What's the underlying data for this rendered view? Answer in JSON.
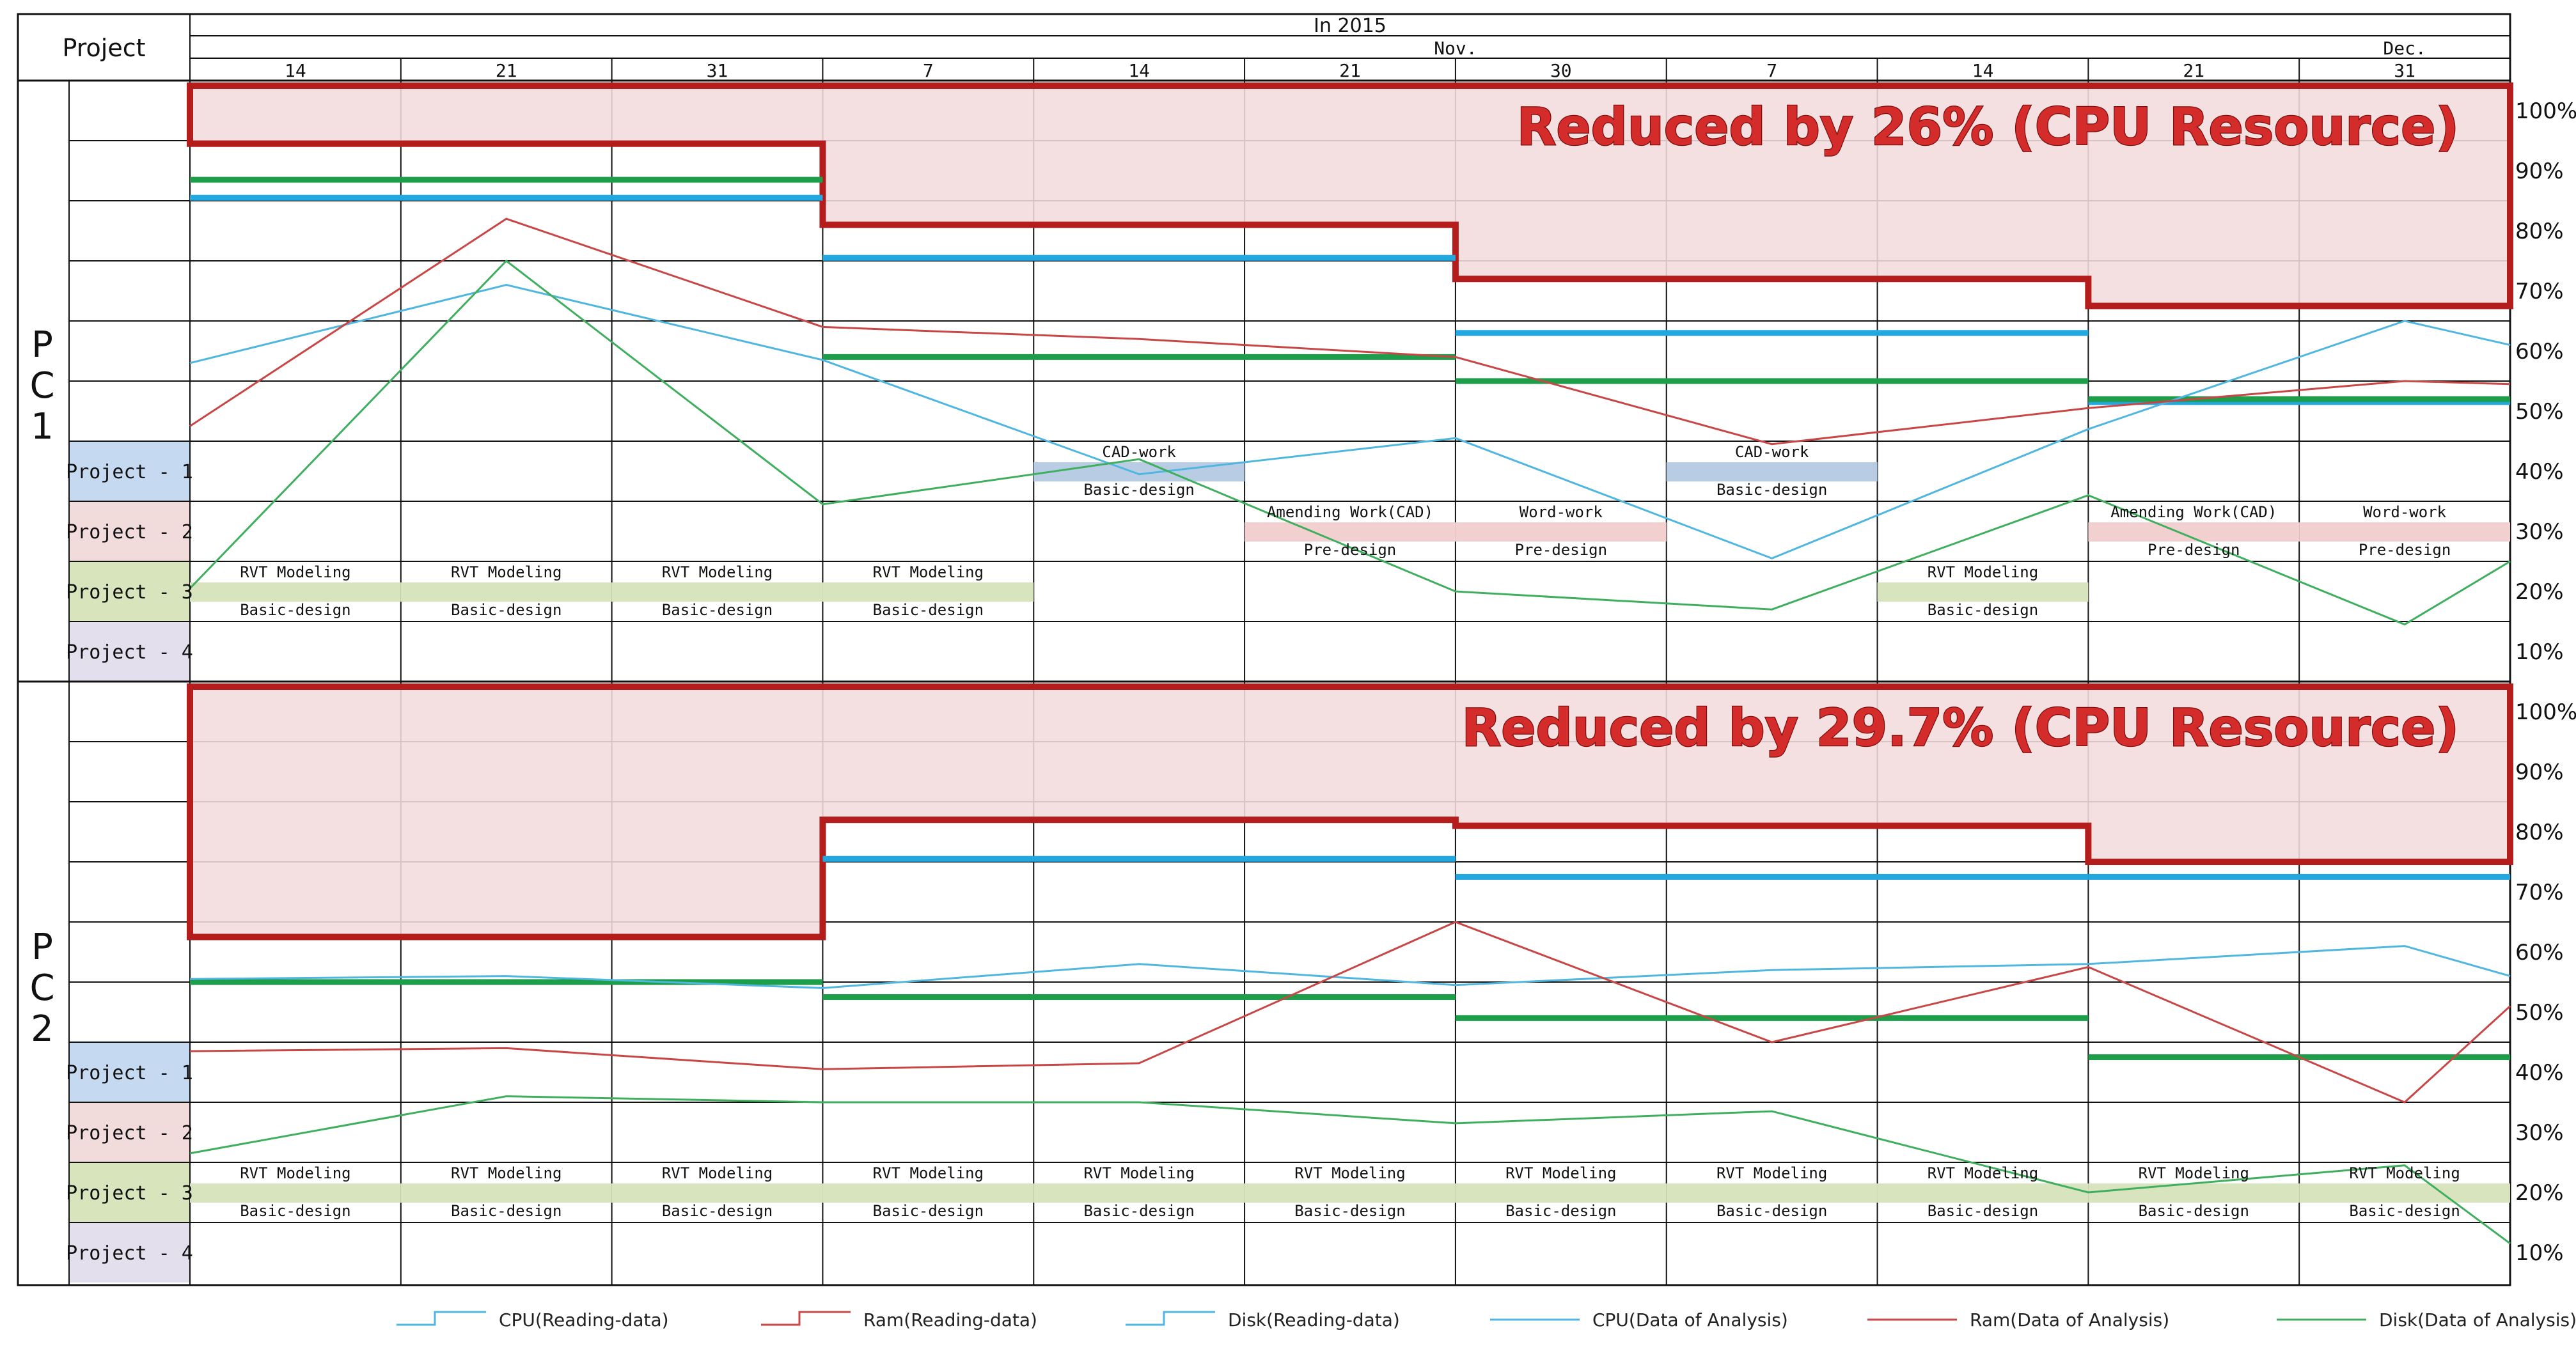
{
  "chart_data": {
    "type": "line",
    "header": {
      "project_label": "Project",
      "year_label": "In 2015",
      "months": [
        {
          "label": "Nov.",
          "from": 3,
          "to": 9
        },
        {
          "label": "Dec.",
          "from": 9,
          "to": 12
        }
      ],
      "dates": [
        "14",
        "21",
        "31",
        "7",
        "14",
        "21",
        "30",
        "7",
        "14",
        "21",
        "31"
      ]
    },
    "y_ticks": [
      "100%",
      "90%",
      "80%",
      "70%",
      "60%",
      "50%",
      "40%",
      "30%",
      "20%",
      "10%"
    ],
    "projects": [
      "Project - 1",
      "Project - 2",
      "Project - 3",
      "Project - 4"
    ],
    "legend": [
      {
        "name": "CPU(Reading-data)",
        "color": "#4fb6e0",
        "style": "step"
      },
      {
        "name": "Ram(Reading-data)",
        "color": "#c84646",
        "style": "step"
      },
      {
        "name": "Disk(Reading-data)",
        "color": "#4fb6e0",
        "style": "step"
      },
      {
        "name": "CPU(Data of Analysis)",
        "color": "#4fb6e0",
        "style": "line"
      },
      {
        "name": "Ram(Data of Analysis)",
        "color": "#c84646",
        "style": "line"
      },
      {
        "name": "Disk(Data of Analysis)",
        "color": "#3fae5e",
        "style": "line"
      }
    ],
    "colors": {
      "cpu": "#4fb6e0",
      "ram": "#c84646",
      "disk": "#3fae5e",
      "cpu_bar": "#22a8e0",
      "disk_bar": "#1e9e4a",
      "banner_fill": "#f2dcdc",
      "banner_border": "#b51c1c",
      "p1": "#c5d9f1",
      "p2": "#f2dcdb",
      "p3": "#d8e4bc",
      "p4": "#e4dfec",
      "bar_p1": "#b8cce4",
      "bar_p2": "#f2d0d0",
      "bar_p3": "#d7e4bd"
    },
    "panels": [
      {
        "name": "PC1",
        "label": [
          "P",
          "C",
          "1"
        ],
        "banner_text": "Reduced by 26% (CPU Resource)",
        "reduction_step": [
          [
            0,
            3,
            94.5
          ],
          [
            3,
            6,
            81
          ],
          [
            6,
            9,
            72
          ],
          [
            9,
            11,
            67.5
          ]
        ],
        "cpu_line": [
          58,
          71,
          58.5,
          39.5,
          45.5,
          25.5,
          47,
          65,
          61
        ],
        "ram_line": [
          47.5,
          82,
          64,
          62,
          59,
          44.5,
          50.5,
          55,
          54.5
        ],
        "disk_line": [
          20.5,
          75,
          34.5,
          42,
          20,
          17,
          36,
          14.5,
          25
        ],
        "cpu_analysis": [
          [
            0,
            3,
            85.5
          ],
          [
            3,
            6,
            75.5
          ],
          [
            6,
            9,
            63
          ],
          [
            9,
            11,
            51.5
          ]
        ],
        "disk_analysis": [
          [
            0,
            3,
            88.5
          ],
          [
            3,
            6,
            59
          ],
          [
            6,
            9,
            55
          ],
          [
            9,
            11,
            52
          ]
        ],
        "tasks": [
          {
            "col": 0,
            "row": 2,
            "top": "RVT Modeling",
            "bottom": "Basic-design"
          },
          {
            "col": 1,
            "row": 2,
            "top": "RVT Modeling",
            "bottom": "Basic-design"
          },
          {
            "col": 2,
            "row": 2,
            "top": "RVT Modeling",
            "bottom": "Basic-design"
          },
          {
            "col": 3,
            "row": 2,
            "top": "RVT Modeling",
            "bottom": "Basic-design"
          },
          {
            "col": 4,
            "row": 0,
            "top": "CAD-work",
            "bottom": "Basic-design"
          },
          {
            "col": 5,
            "row": 1,
            "top": "Amending Work(CAD)",
            "bottom": "Pre-design"
          },
          {
            "col": 6,
            "row": 1,
            "top": "Word-work",
            "bottom": "Pre-design"
          },
          {
            "col": 7,
            "row": 0,
            "top": "CAD-work",
            "bottom": "Basic-design"
          },
          {
            "col": 8,
            "row": 2,
            "top": "RVT Modeling",
            "bottom": "Basic-design"
          },
          {
            "col": 9,
            "row": 1,
            "top": "Amending Work(CAD)",
            "bottom": "Pre-design"
          },
          {
            "col": 10,
            "row": 1,
            "top": "Word-work",
            "bottom": "Pre-design"
          }
        ]
      },
      {
        "name": "PC2",
        "label": [
          "P",
          "C",
          "2"
        ],
        "banner_text": "Reduced by 29.7% (CPU Resource)",
        "reduction_step": [
          [
            0,
            3,
            62.5
          ],
          [
            3,
            6,
            82
          ],
          [
            6,
            9,
            81
          ],
          [
            9,
            11,
            75
          ]
        ],
        "cpu_line": [
          55.5,
          56,
          54,
          58,
          54.5,
          57,
          58,
          61,
          56
        ],
        "ram_line": [
          43.5,
          44,
          40.5,
          41.5,
          65,
          45,
          57.5,
          35,
          51
        ],
        "disk_line": [
          26.5,
          36,
          35,
          35,
          31.5,
          33.5,
          20,
          24.5,
          11.5
        ],
        "cpu_analysis": [
          [
            0,
            3,
            55
          ],
          [
            3,
            6,
            75.5
          ],
          [
            6,
            9,
            72.5
          ],
          [
            9,
            11,
            72.5
          ]
        ],
        "disk_analysis": [
          [
            0,
            3,
            55
          ],
          [
            3,
            6,
            52.5
          ],
          [
            6,
            9,
            49
          ],
          [
            9,
            11,
            42.5
          ]
        ],
        "tasks": [
          {
            "col": 0,
            "row": 2,
            "top": "RVT Modeling",
            "bottom": "Basic-design"
          },
          {
            "col": 1,
            "row": 2,
            "top": "RVT Modeling",
            "bottom": "Basic-design"
          },
          {
            "col": 2,
            "row": 2,
            "top": "RVT Modeling",
            "bottom": "Basic-design"
          },
          {
            "col": 3,
            "row": 2,
            "top": "RVT Modeling",
            "bottom": "Basic-design"
          },
          {
            "col": 4,
            "row": 2,
            "top": "RVT Modeling",
            "bottom": "Basic-design"
          },
          {
            "col": 5,
            "row": 2,
            "top": "RVT Modeling",
            "bottom": "Basic-design"
          },
          {
            "col": 6,
            "row": 2,
            "top": "RVT Modeling",
            "bottom": "Basic-design"
          },
          {
            "col": 7,
            "row": 2,
            "top": "RVT Modeling",
            "bottom": "Basic-design"
          },
          {
            "col": 8,
            "row": 2,
            "top": "RVT Modeling",
            "bottom": "Basic-design"
          },
          {
            "col": 9,
            "row": 2,
            "top": "RVT Modeling",
            "bottom": "Basic-design"
          },
          {
            "col": 10,
            "row": 2,
            "top": "RVT Modeling",
            "bottom": "Basic-design"
          }
        ]
      }
    ]
  }
}
